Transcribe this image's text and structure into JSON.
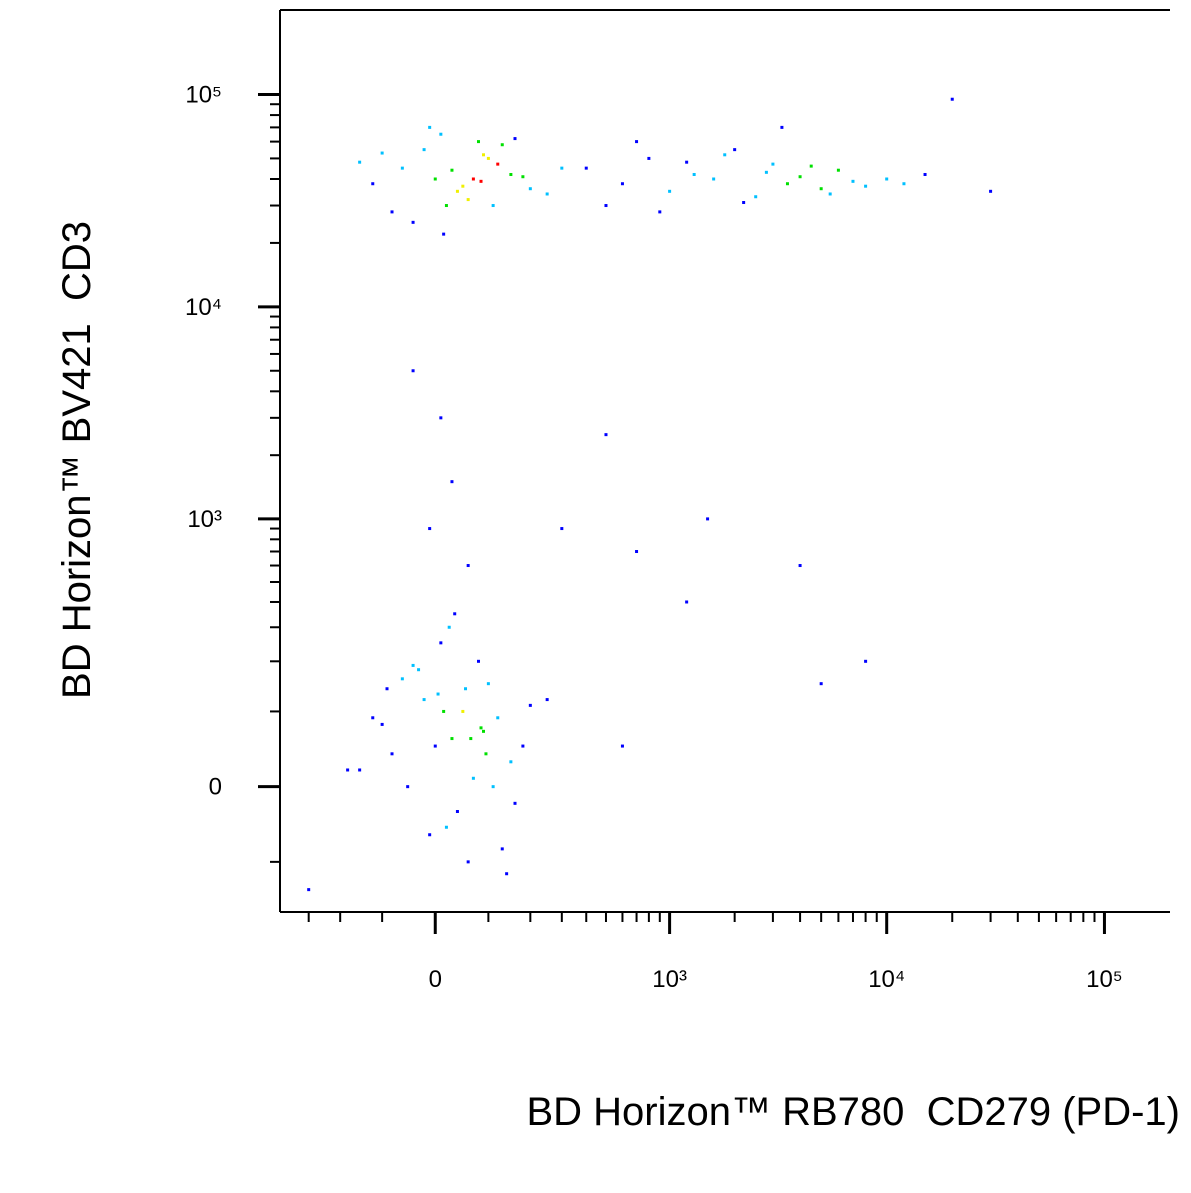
{
  "chart_data": {
    "type": "scatter",
    "x_label": "BD Horizon™ RB780  CD279 (PD-1)",
    "y_label": "BD Horizon™ BV421  CD3",
    "x_scale": "biexponential",
    "y_scale": "biexponential",
    "xlim": [
      -420,
      200000
    ],
    "ylim": [
      -200,
      250000
    ],
    "xticks": [
      0,
      {
        "value": 1000,
        "label": "10³"
      },
      {
        "value": 10000,
        "label": "10⁴"
      },
      {
        "value": 100000,
        "label": "10⁵"
      }
    ],
    "yticks": [
      0,
      {
        "value": 1000,
        "label": "10³"
      },
      {
        "value": 10000,
        "label": "10⁴"
      },
      {
        "value": 100000,
        "label": "10⁵"
      }
    ],
    "xminorticks": [
      -300,
      -200,
      -100,
      100,
      200,
      300,
      400,
      500,
      600,
      700,
      800,
      900,
      2000,
      3000,
      4000,
      5000,
      6000,
      7000,
      8000,
      9000,
      20000,
      30000,
      40000,
      50000,
      60000,
      70000,
      80000,
      90000
    ],
    "yminorticks": [
      -100,
      100,
      200,
      300,
      400,
      500,
      600,
      700,
      800,
      900,
      2000,
      3000,
      4000,
      5000,
      6000,
      7000,
      8000,
      9000,
      20000,
      30000,
      40000,
      50000,
      60000,
      70000,
      80000,
      90000
    ],
    "x": [
      0,
      50,
      -50,
      100,
      20,
      -100,
      80,
      150,
      -20,
      30,
      60,
      -80,
      120,
      10,
      -150,
      200,
      40,
      90,
      -30,
      70,
      5,
      130,
      -60,
      180,
      25,
      -120,
      110,
      55,
      -10,
      85,
      250,
      -180,
      35,
      140,
      65,
      -40,
      95,
      15,
      160,
      -90,
      0,
      40,
      -60,
      100,
      20,
      -120,
      80,
      150,
      -20,
      60,
      120,
      -80,
      10,
      200,
      30,
      90,
      -40,
      70,
      250,
      -150,
      130,
      50,
      -10,
      180,
      110,
      300,
      15,
      -100,
      85,
      160,
      400,
      600,
      800,
      1000,
      1300,
      1600,
      2000,
      2500,
      3000,
      3500,
      4000,
      5000,
      6000,
      7000,
      8000,
      500,
      700,
      900,
      1200,
      1800,
      2200,
      2800,
      3300,
      4500,
      5500,
      10000,
      12000,
      15000,
      20000,
      30000,
      -40,
      10,
      30,
      -10,
      60,
      300,
      500,
      700,
      1500,
      1200,
      4000,
      5000,
      8000,
      600,
      -300
    ],
    "values": [
      50,
      100,
      0,
      150,
      -50,
      80,
      200,
      30,
      120,
      60,
      -100,
      40,
      90,
      250,
      20,
      110,
      -30,
      70,
      180,
      10,
      130,
      -80,
      160,
      50,
      300,
      90,
      0,
      140,
      -60,
      75,
      120,
      20,
      350,
      -120,
      60,
      190,
      40,
      100,
      -20,
      140,
      40000,
      35000,
      45000,
      50000,
      30000,
      38000,
      60000,
      42000,
      55000,
      32000,
      47000,
      28000,
      65000,
      36000,
      44000,
      52000,
      25000,
      40000,
      34000,
      48000,
      58000,
      37000,
      70000,
      41000,
      30000,
      45000,
      22000,
      53000,
      39000,
      62000,
      45000,
      38000,
      50000,
      35000,
      42000,
      40000,
      55000,
      33000,
      47000,
      38000,
      41000,
      36000,
      44000,
      39000,
      37000,
      30000,
      60000,
      28000,
      48000,
      52000,
      31000,
      43000,
      70000,
      46000,
      34000,
      40000,
      38000,
      42000,
      95000,
      35000,
      5000,
      3000,
      1500,
      900,
      600,
      900,
      2500,
      700,
      1000,
      400,
      600,
      150,
      200,
      50,
      -150
    ]
  }
}
